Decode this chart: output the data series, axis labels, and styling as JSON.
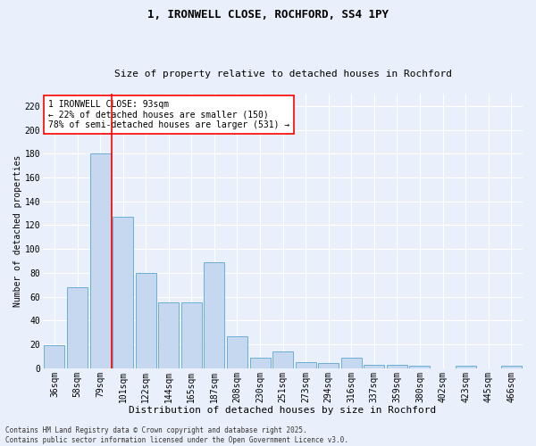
{
  "title1": "1, IRONWELL CLOSE, ROCHFORD, SS4 1PY",
  "title2": "Size of property relative to detached houses in Rochford",
  "xlabel": "Distribution of detached houses by size in Rochford",
  "ylabel": "Number of detached properties",
  "categories": [
    "36sqm",
    "58sqm",
    "79sqm",
    "101sqm",
    "122sqm",
    "144sqm",
    "165sqm",
    "187sqm",
    "208sqm",
    "230sqm",
    "251sqm",
    "273sqm",
    "294sqm",
    "316sqm",
    "337sqm",
    "359sqm",
    "380sqm",
    "402sqm",
    "423sqm",
    "445sqm",
    "466sqm"
  ],
  "values": [
    19,
    68,
    180,
    127,
    80,
    55,
    55,
    89,
    27,
    9,
    14,
    5,
    4,
    9,
    3,
    3,
    2,
    0,
    2,
    0,
    2
  ],
  "bar_color": "#c5d8f0",
  "bar_edge_color": "#6baed6",
  "vline_color": "red",
  "vline_index": 2.5,
  "annotation_text": "1 IRONWELL CLOSE: 93sqm\n← 22% of detached houses are smaller (150)\n78% of semi-detached houses are larger (531) →",
  "annotation_box_color": "white",
  "annotation_box_edge": "red",
  "ylim": [
    0,
    230
  ],
  "yticks": [
    0,
    20,
    40,
    60,
    80,
    100,
    120,
    140,
    160,
    180,
    200,
    220
  ],
  "footer": "Contains HM Land Registry data © Crown copyright and database right 2025.\nContains public sector information licensed under the Open Government Licence v3.0.",
  "bg_color": "#eaf0fb",
  "grid_color": "white",
  "title1_fontsize": 9,
  "title2_fontsize": 8,
  "xlabel_fontsize": 8,
  "ylabel_fontsize": 7,
  "tick_fontsize": 7,
  "annot_fontsize": 7,
  "footer_fontsize": 5.5
}
